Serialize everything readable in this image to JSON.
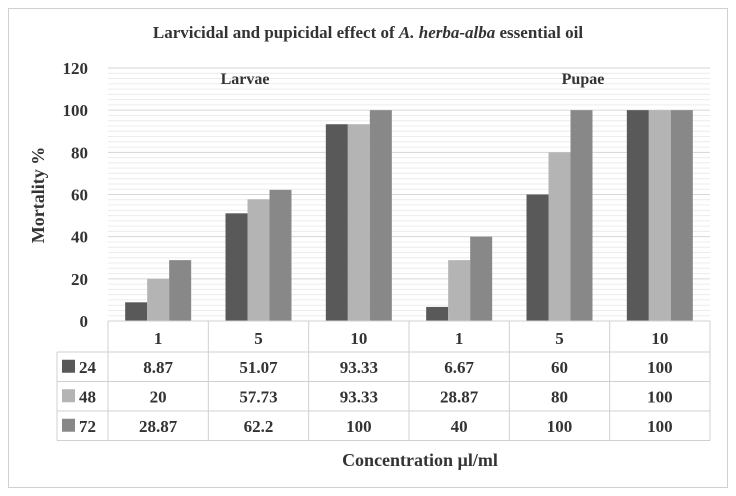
{
  "chart_data": {
    "type": "bar",
    "title_prefix": "Larvicidal and pupicidal effect of ",
    "title_italic": "A. herba-alba",
    "title_suffix": " essential oil",
    "xlabel": "Concentration µl/ml",
    "ylabel": "Mortality %",
    "ylim": [
      0,
      120
    ],
    "yticks": [
      0,
      20,
      40,
      60,
      80,
      100,
      120
    ],
    "grid": true,
    "group_labels": [
      {
        "label": "Larvae"
      },
      {
        "label": "Pupae"
      }
    ],
    "categories": [
      "1",
      "5",
      "10",
      "1",
      "5",
      "10"
    ],
    "series": [
      {
        "name": "24",
        "color": "#595959",
        "values": [
          8.87,
          51.07,
          93.33,
          6.67,
          60,
          100
        ],
        "labels": [
          "8.87",
          "51.07",
          "93.33",
          "6.67",
          "60",
          "100"
        ]
      },
      {
        "name": "48",
        "color": "#b4b4b4",
        "values": [
          20,
          57.73,
          93.33,
          28.87,
          80,
          100
        ],
        "labels": [
          "20",
          "57.73",
          "93.33",
          "28.87",
          "80",
          "100"
        ]
      },
      {
        "name": "72",
        "color": "#888888",
        "values": [
          28.87,
          62.2,
          100,
          40,
          100,
          100
        ],
        "labels": [
          "28.87",
          "62.2",
          "100",
          "40",
          "100",
          "100"
        ]
      }
    ],
    "legend_placement": "data-table"
  }
}
